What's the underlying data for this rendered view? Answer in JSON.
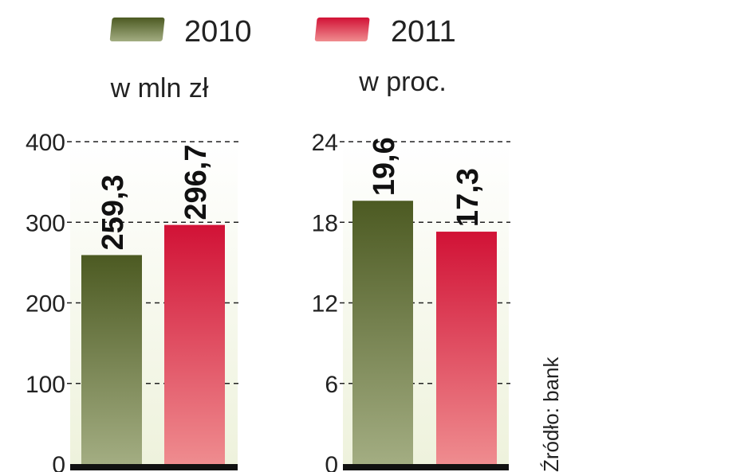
{
  "legend": [
    {
      "label": "2010",
      "color": "#5a6b2c"
    },
    {
      "label": "2011",
      "color": "#d8213f"
    }
  ],
  "source": "Źródło: bank",
  "chart_data": [
    {
      "type": "bar",
      "title": "w mln zł",
      "categories": [
        "2010",
        "2011"
      ],
      "series": [
        {
          "values": [
            259.3,
            296.7
          ]
        }
      ],
      "value_labels": [
        "259,3",
        "296,7"
      ],
      "yticks": [
        0,
        100,
        200,
        300,
        400
      ],
      "ylim": [
        0,
        400
      ],
      "grid": true
    },
    {
      "type": "bar",
      "title": "w proc.",
      "categories": [
        "2010",
        "2011"
      ],
      "series": [
        {
          "values": [
            19.6,
            17.3
          ]
        }
      ],
      "value_labels": [
        "19,6",
        "17,3"
      ],
      "yticks": [
        0,
        6,
        12,
        18,
        24
      ],
      "ylim": [
        0,
        24
      ],
      "grid": true
    }
  ]
}
